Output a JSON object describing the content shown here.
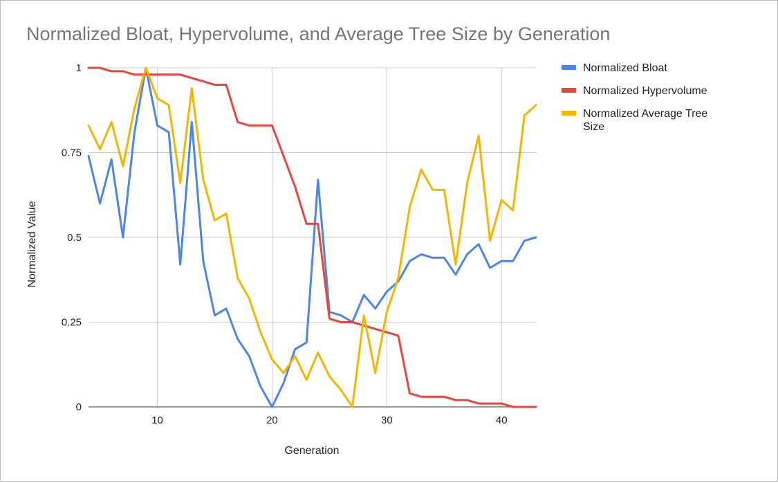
{
  "chart_data": {
    "type": "line",
    "title": "Normalized Bloat, Hypervolume, and Average Tree Size by Generation",
    "xlabel": "Generation",
    "ylabel": "Normalized Value",
    "xlim": [
      4,
      43
    ],
    "ylim": [
      0,
      1
    ],
    "x_ticks": [
      10,
      20,
      30,
      40
    ],
    "y_ticks": [
      0,
      0.25,
      0.5,
      0.75,
      1
    ],
    "y_tick_labels": [
      "0",
      "0.25",
      "0.5",
      "0.75",
      "1"
    ],
    "grid": true,
    "legend_position": "right",
    "x": [
      4,
      5,
      6,
      7,
      8,
      9,
      10,
      11,
      12,
      13,
      14,
      15,
      16,
      17,
      18,
      19,
      20,
      21,
      22,
      23,
      24,
      25,
      26,
      27,
      28,
      29,
      30,
      31,
      32,
      33,
      34,
      35,
      36,
      37,
      38,
      39,
      40,
      41,
      42,
      43
    ],
    "series": [
      {
        "name": "Normalized Bloat",
        "color": "#4a86e8",
        "values": [
          0.74,
          0.6,
          0.73,
          0.5,
          0.81,
          1.0,
          0.83,
          0.81,
          0.42,
          0.84,
          0.43,
          0.27,
          0.29,
          0.2,
          0.15,
          0.06,
          0.0,
          0.07,
          0.17,
          0.19,
          0.67,
          0.28,
          0.27,
          0.25,
          0.33,
          0.29,
          0.34,
          0.37,
          0.43,
          0.45,
          0.44,
          0.44,
          0.39,
          0.45,
          0.48,
          0.41,
          0.43,
          0.43,
          0.49,
          0.5
        ]
      },
      {
        "name": "Normalized Hypervolume",
        "color": "#e8453c",
        "values": [
          1.0,
          1.0,
          0.99,
          0.99,
          0.98,
          0.98,
          0.98,
          0.98,
          0.98,
          0.97,
          0.96,
          0.95,
          0.95,
          0.84,
          0.83,
          0.83,
          0.83,
          0.74,
          0.65,
          0.54,
          0.54,
          0.26,
          0.25,
          0.25,
          0.24,
          0.23,
          0.22,
          0.21,
          0.04,
          0.03,
          0.03,
          0.03,
          0.02,
          0.02,
          0.01,
          0.01,
          0.01,
          0.0,
          0.0,
          0.0
        ]
      },
      {
        "name": "Normalized Average Tree Size",
        "color": "#f4b400",
        "values": [
          0.83,
          0.76,
          0.84,
          0.71,
          0.88,
          1.0,
          0.91,
          0.89,
          0.66,
          0.94,
          0.67,
          0.55,
          0.57,
          0.38,
          0.32,
          0.22,
          0.14,
          0.1,
          0.15,
          0.08,
          0.16,
          0.09,
          0.05,
          0.0,
          0.27,
          0.1,
          0.28,
          0.38,
          0.59,
          0.7,
          0.64,
          0.64,
          0.42,
          0.66,
          0.8,
          0.49,
          0.61,
          0.58,
          0.86,
          0.89
        ]
      }
    ]
  },
  "legend": {
    "label_1": "Normalized Bloat",
    "label_2": "Normalized Hypervolume",
    "label_3_line1": "Normalized Average Tree",
    "label_3_line2": "Size"
  }
}
